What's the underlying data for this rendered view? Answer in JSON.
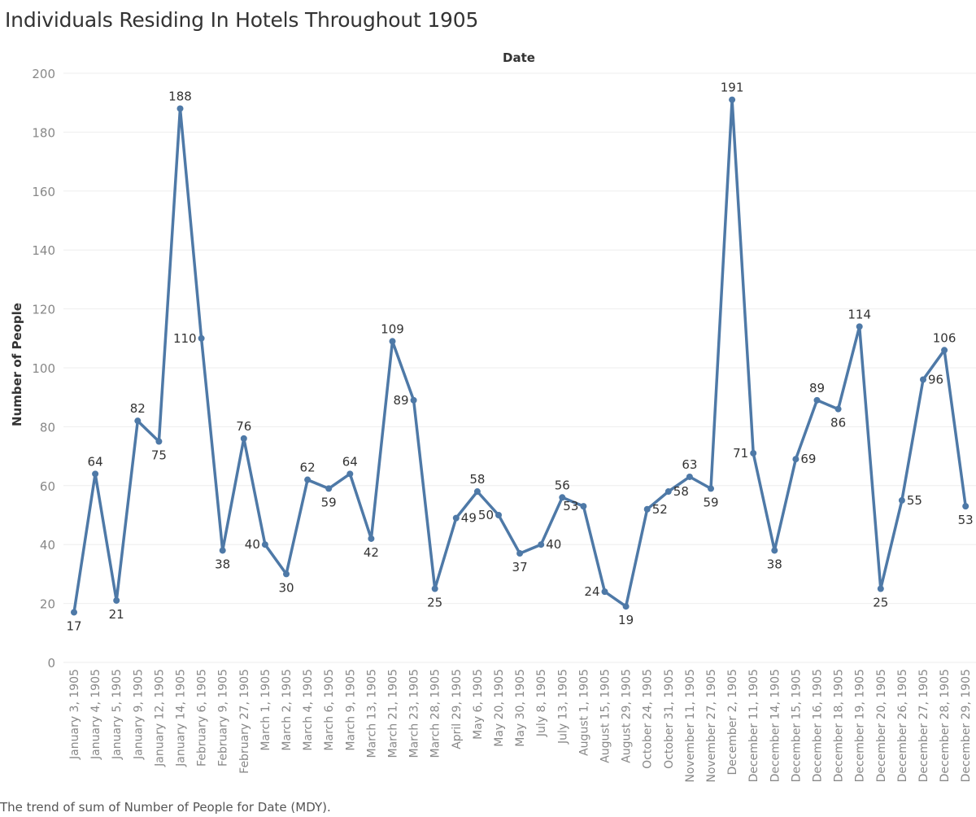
{
  "title": "Individuals Residing In Hotels Throughout 1905",
  "caption": "The trend of sum of Number of People for Date (MDY).",
  "colors": {
    "line": "#4e79a7",
    "grid": "#eeeeee",
    "tick_text": "#888888",
    "label_text": "#333333"
  },
  "chart_data": {
    "type": "line",
    "title": "Individuals Residing In Hotels Throughout 1905",
    "xlabel": "Date",
    "ylabel": "Number of People",
    "ylim": [
      0,
      200
    ],
    "yticks": [
      0,
      20,
      40,
      60,
      80,
      100,
      120,
      140,
      160,
      180,
      200
    ],
    "grid": true,
    "categories": [
      "January 3, 1905",
      "January 4, 1905",
      "January 5, 1905",
      "January 9, 1905",
      "January 12, 1905",
      "January 14, 1905",
      "February 6, 1905",
      "February 9, 1905",
      "February 27, 1905",
      "March 1, 1905",
      "March 2, 1905",
      "March 4, 1905",
      "March 6, 1905",
      "March 9, 1905",
      "March 13, 1905",
      "March 21, 1905",
      "March 23, 1905",
      "March 28, 1905",
      "April 29, 1905",
      "May 6, 1905",
      "May 20, 1905",
      "May 30, 1905",
      "July 8, 1905",
      "July 13, 1905",
      "August 1, 1905",
      "August 15, 1905",
      "August 29, 1905",
      "October 24, 1905",
      "October 31, 1905",
      "November 11, 1905",
      "November 27, 1905",
      "December 2, 1905",
      "December 11, 1905",
      "December 14, 1905",
      "December 15, 1905",
      "December 16, 1905",
      "December 18, 1905",
      "December 19, 1905",
      "December 20, 1905",
      "December 26, 1905",
      "December 27, 1905",
      "December 28, 1905",
      "December 29, 1905"
    ],
    "series": [
      {
        "values": [
          17,
          64,
          21,
          82,
          75,
          188,
          110,
          38,
          76,
          40,
          30,
          62,
          59,
          64,
          42,
          109,
          89,
          25,
          49,
          58,
          50,
          37,
          40,
          56,
          53,
          24,
          19,
          52,
          58,
          63,
          59,
          191,
          71,
          38,
          69,
          89,
          86,
          114,
          25,
          55,
          96,
          106,
          53
        ]
      }
    ]
  }
}
